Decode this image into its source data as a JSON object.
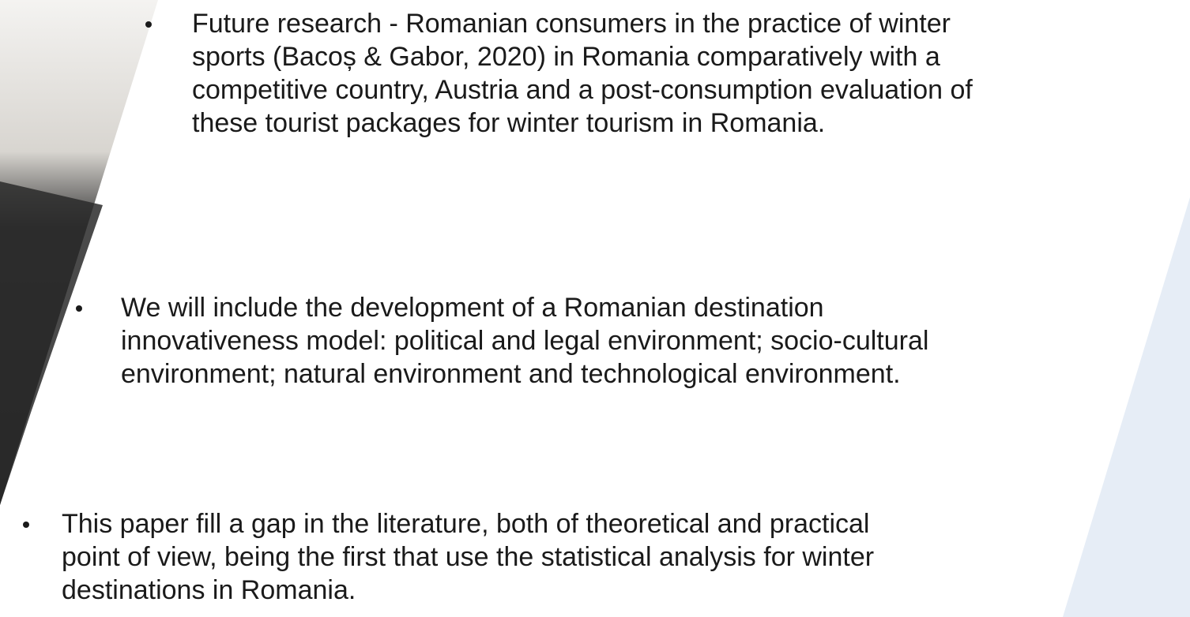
{
  "bullets": [
    {
      "lines": [
        "Future research - Romanian consumers in the practice of winter",
        "sports (Bacoș & Gabor, 2020) in Romania comparatively with a",
        "competitive country, Austria and a post-consumption evaluation of",
        "these tourist packages for winter tourism in Romania."
      ]
    },
    {
      "lines": [
        "We will include the development of a Romanian destination",
        "innovativeness model: political and legal environment; socio-cultural",
        "environment; natural environment and technological environment."
      ]
    },
    {
      "lines": [
        "This paper fill a gap in the literature, both of theoretical and practical",
        "point of view, being the first that use the statistical analysis for winter",
        "destinations in Romania."
      ]
    }
  ]
}
